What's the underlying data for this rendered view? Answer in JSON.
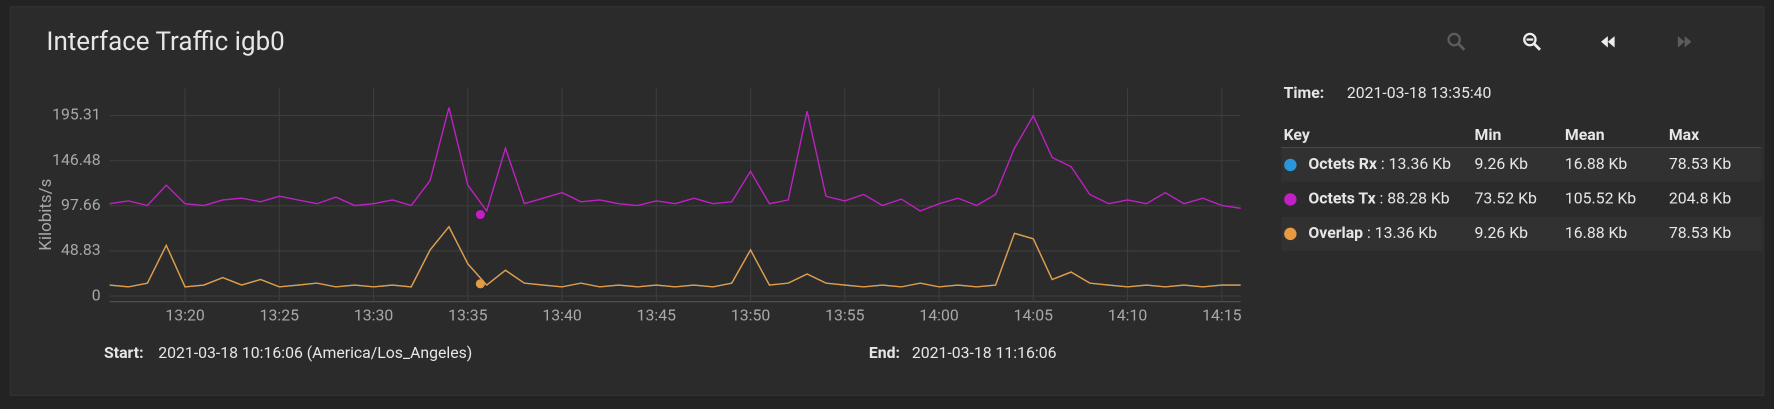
{
  "header": {
    "title": "Interface Traffic igb0"
  },
  "chart_data": {
    "type": "line",
    "y_label": "Kilobits/s",
    "x": [
      "13:16",
      "13:17",
      "13:18",
      "13:19",
      "13:20",
      "13:21",
      "13:22",
      "13:23",
      "13:24",
      "13:25",
      "13:26",
      "13:27",
      "13:28",
      "13:29",
      "13:30",
      "13:31",
      "13:32",
      "13:33",
      "13:34",
      "13:35",
      "13:36",
      "13:37",
      "13:38",
      "13:39",
      "13:40",
      "13:41",
      "13:42",
      "13:43",
      "13:44",
      "13:45",
      "13:46",
      "13:47",
      "13:48",
      "13:49",
      "13:50",
      "13:51",
      "13:52",
      "13:53",
      "13:54",
      "13:55",
      "13:56",
      "13:57",
      "13:58",
      "13:59",
      "14:00",
      "14:01",
      "14:02",
      "14:03",
      "14:04",
      "14:05",
      "14:06",
      "14:07",
      "14:08",
      "14:09",
      "14:10",
      "14:11",
      "14:12",
      "14:13",
      "14:14",
      "14:15",
      "14:16"
    ],
    "xlim": [
      "13:16",
      "14:16"
    ],
    "xticks": [
      "13:20",
      "13:25",
      "13:30",
      "13:35",
      "13:40",
      "13:45",
      "13:50",
      "13:55",
      "14:00",
      "14:05",
      "14:10",
      "14:15"
    ],
    "ylim": [
      -6,
      225
    ],
    "yticks": [
      0,
      48.83,
      97.66,
      146.48,
      195.31
    ],
    "grid": true,
    "series": [
      {
        "name": "Octets Rx",
        "color": "#2a95d9",
        "min": "9.26 Kb",
        "mean": "16.88 Kb",
        "max": "78.53 Kb",
        "values": [
          12,
          10,
          14,
          55,
          10,
          12,
          20,
          12,
          18,
          10,
          12,
          14,
          10,
          12,
          10,
          12,
          10,
          50,
          75,
          35,
          12,
          28,
          14,
          12,
          10,
          14,
          10,
          12,
          10,
          12,
          10,
          12,
          10,
          14,
          50,
          12,
          14,
          24,
          14,
          12,
          10,
          12,
          10,
          14,
          10,
          12,
          10,
          12,
          68,
          62,
          18,
          26,
          14,
          12,
          10,
          12,
          10,
          12,
          10,
          12,
          12
        ]
      },
      {
        "name": "Octets Tx",
        "color": "#c220c6",
        "min": "73.52 Kb",
        "mean": "105.52 Kb",
        "max": "204.8 Kb",
        "values": [
          100,
          103,
          98,
          120,
          100,
          98,
          104,
          106,
          102,
          108,
          104,
          100,
          107,
          98,
          100,
          104,
          98,
          125,
          204,
          120,
          92,
          160,
          100,
          106,
          112,
          102,
          104,
          100,
          98,
          103,
          100,
          106,
          100,
          102,
          135,
          100,
          104,
          200,
          108,
          103,
          110,
          98,
          105,
          92,
          100,
          106,
          98,
          110,
          160,
          195,
          150,
          140,
          110,
          100,
          104,
          100,
          112,
          100,
          106,
          98,
          95
        ]
      },
      {
        "name": "Overlap",
        "color": "#e89a40",
        "min": "9.26 Kb",
        "mean": "16.88 Kb",
        "max": "78.53 Kb",
        "values": [
          12,
          10,
          14,
          55,
          10,
          12,
          20,
          12,
          18,
          10,
          12,
          14,
          10,
          12,
          10,
          12,
          10,
          50,
          75,
          35,
          12,
          28,
          14,
          12,
          10,
          14,
          10,
          12,
          10,
          12,
          10,
          12,
          10,
          14,
          50,
          12,
          14,
          24,
          14,
          12,
          10,
          12,
          10,
          14,
          10,
          12,
          10,
          12,
          68,
          62,
          18,
          26,
          14,
          12,
          10,
          12,
          10,
          12,
          10,
          12,
          12
        ]
      }
    ],
    "cursor": {
      "label": "Time:",
      "time": "2021-03-18 13:35:40",
      "values": [
        13.36,
        88.28,
        13.36
      ],
      "value_labels": [
        " : 13.36 Kb",
        " : 88.28 Kb",
        " : 13.36 Kb"
      ]
    },
    "legend_headers": [
      "Key",
      "Min",
      "Mean",
      "Max"
    ]
  },
  "footer": {
    "start_label": "Start:",
    "start": "2021-03-18 10:16:06 (America/Los_Angeles)",
    "end_label": "End:",
    "end": "2021-03-18 11:16:06"
  }
}
